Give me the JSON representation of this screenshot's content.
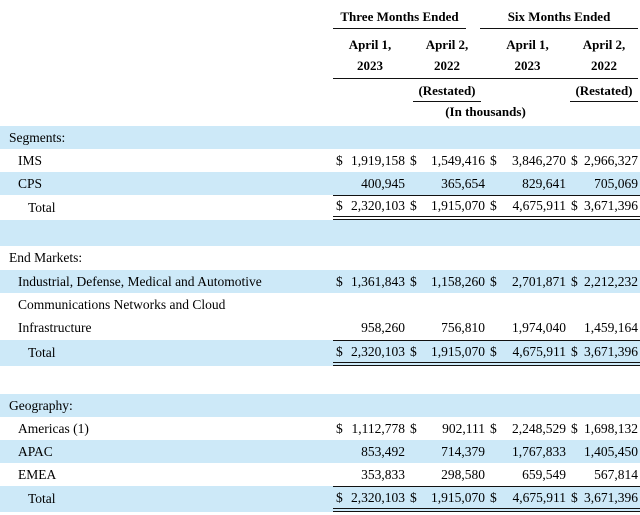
{
  "colors": {
    "row_highlight": "#cde9f8",
    "rule": "#111111",
    "text": "#000000",
    "background": "#ffffff"
  },
  "header": {
    "groups": [
      "Three Months Ended",
      "Six Months Ended"
    ],
    "columns": [
      {
        "line1": "April 1,",
        "line2": "2023",
        "note": ""
      },
      {
        "line1": "April 2,",
        "line2": "2022",
        "note": "(Restated)"
      },
      {
        "line1": "April 1,",
        "line2": "2023",
        "note": ""
      },
      {
        "line1": "April 2,",
        "line2": "2022",
        "note": "(Restated)"
      }
    ],
    "units_note": "(In thousands)"
  },
  "rows": [
    {
      "type": "section",
      "label": "Segments:"
    },
    {
      "type": "data",
      "label": "IMS",
      "d": [
        "$",
        "$",
        "$",
        "$"
      ],
      "values": [
        "1,919,158",
        "1,549,416",
        "3,846,270",
        "2,966,327"
      ]
    },
    {
      "type": "data",
      "label": "CPS",
      "values": [
        "400,945",
        "365,654",
        "829,641",
        "705,069"
      ]
    },
    {
      "type": "total",
      "label": "Total",
      "d": [
        "$",
        "$",
        "$",
        "$"
      ],
      "values": [
        "2,320,103",
        "1,915,070",
        "4,675,911",
        "3,671,396"
      ]
    },
    {
      "type": "spacer",
      "label": ""
    },
    {
      "type": "section",
      "label": "End Markets:"
    },
    {
      "type": "data",
      "label": "Industrial, Defense, Medical and Automotive",
      "d": [
        "$",
        "$",
        "$",
        "$"
      ],
      "values": [
        "1,361,843",
        "1,158,260",
        "2,701,871",
        "2,212,232"
      ]
    },
    {
      "type": "data",
      "label": "Communications Networks and Cloud"
    },
    {
      "type": "data",
      "label": "Infrastructure",
      "values": [
        "958,260",
        "756,810",
        "1,974,040",
        "1,459,164"
      ]
    },
    {
      "type": "total",
      "label": "Total",
      "d": [
        "$",
        "$",
        "$",
        "$"
      ],
      "values": [
        "2,320,103",
        "1,915,070",
        "4,675,911",
        "3,671,396"
      ]
    },
    {
      "type": "spacer",
      "label": ""
    },
    {
      "type": "section",
      "label": "Geography:"
    },
    {
      "type": "data",
      "label": "Americas (1)",
      "d": [
        "$",
        "$",
        "$",
        "$"
      ],
      "values": [
        "1,112,778",
        "902,111",
        "2,248,529",
        "1,698,132"
      ]
    },
    {
      "type": "data",
      "label": "APAC",
      "values": [
        "853,492",
        "714,379",
        "1,767,833",
        "1,405,450"
      ]
    },
    {
      "type": "data",
      "label": "EMEA",
      "values": [
        "353,833",
        "298,580",
        "659,549",
        "567,814"
      ]
    },
    {
      "type": "total",
      "label": "Total",
      "d": [
        "$",
        "$",
        "$",
        "$"
      ],
      "values": [
        "2,320,103",
        "1,915,070",
        "4,675,911",
        "3,671,396"
      ]
    }
  ]
}
